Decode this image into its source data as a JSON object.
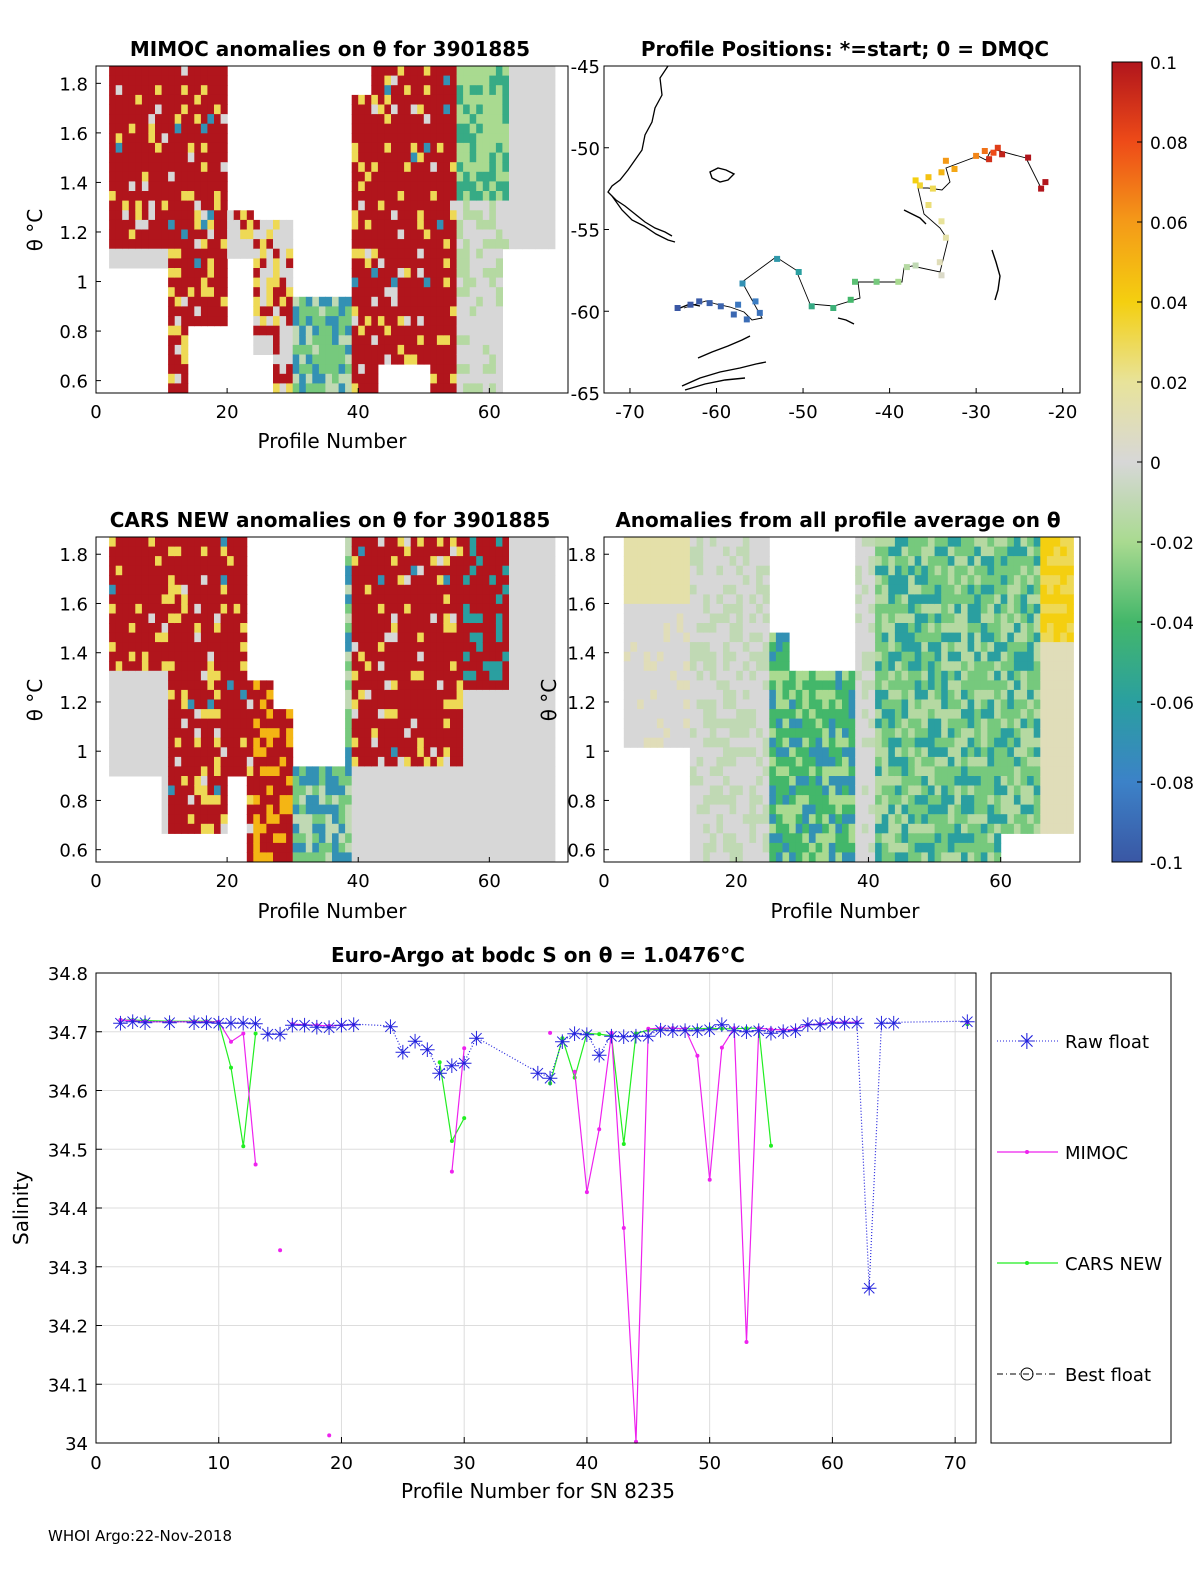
{
  "footer": "WHOI Argo:22-Nov-2018",
  "colors": {
    "raw_float": "#2222dd",
    "mimoc": "#ee22ee",
    "cars": "#22ee22",
    "grid": "#dddddd",
    "contour": "#000000"
  },
  "chart_data": [
    {
      "id": "mimoc",
      "type": "heatmap",
      "title": "MIMOC anomalies on θ  for 3901885",
      "xlabel": "Profile Number",
      "ylabel": "θ °C",
      "xlim": [
        0,
        72
      ],
      "ylim": [
        0.55,
        1.87
      ],
      "xticks": [
        "0",
        "20",
        "40",
        "60"
      ],
      "yticks": [
        "0.6",
        "0.8",
        "1",
        "1.2",
        "1.4",
        "1.6",
        "1.8"
      ]
    },
    {
      "id": "positions",
      "type": "scatter",
      "title": "Profile Positions: *=start; 0 = DMQC",
      "xlim": [
        -73,
        -18
      ],
      "ylim": [
        -65,
        -45
      ],
      "xticks": [
        "-70",
        "-60",
        "-50",
        "-40",
        "-30",
        "-20"
      ],
      "yticks": [
        "-45",
        "-50",
        "-55",
        "-60",
        "-65"
      ],
      "points": [
        {
          "lon": -64.5,
          "lat": -59.8,
          "c": -0.1
        },
        {
          "lon": -63.0,
          "lat": -59.6,
          "c": -0.1
        },
        {
          "lon": -62.0,
          "lat": -59.4,
          "c": -0.098
        },
        {
          "lon": -60.8,
          "lat": -59.5,
          "c": -0.096
        },
        {
          "lon": -59.5,
          "lat": -59.7,
          "c": -0.094
        },
        {
          "lon": -58.0,
          "lat": -60.2,
          "c": -0.092
        },
        {
          "lon": -56.5,
          "lat": -60.5,
          "c": -0.09
        },
        {
          "lon": -55.0,
          "lat": -60.1,
          "c": -0.088
        },
        {
          "lon": -57.5,
          "lat": -59.6,
          "c": -0.085
        },
        {
          "lon": -55.5,
          "lat": -59.4,
          "c": -0.082
        },
        {
          "lon": -57.0,
          "lat": -58.3,
          "c": -0.07
        },
        {
          "lon": -53.0,
          "lat": -56.8,
          "c": -0.065
        },
        {
          "lon": -50.5,
          "lat": -57.6,
          "c": -0.06
        },
        {
          "lon": -49.0,
          "lat": -59.7,
          "c": -0.05
        },
        {
          "lon": -46.5,
          "lat": -59.8,
          "c": -0.045
        },
        {
          "lon": -44.5,
          "lat": -59.3,
          "c": -0.04
        },
        {
          "lon": -44.0,
          "lat": -58.2,
          "c": -0.035
        },
        {
          "lon": -41.5,
          "lat": -58.2,
          "c": -0.03
        },
        {
          "lon": -39.0,
          "lat": -58.2,
          "c": -0.02
        },
        {
          "lon": -38.0,
          "lat": -57.3,
          "c": -0.015
        },
        {
          "lon": -37.0,
          "lat": -57.2,
          "c": -0.01
        },
        {
          "lon": -34.0,
          "lat": -57.8,
          "c": 0.005
        },
        {
          "lon": -34.2,
          "lat": -57.0,
          "c": 0.01
        },
        {
          "lon": -33.5,
          "lat": -55.5,
          "c": 0.015
        },
        {
          "lon": -34.0,
          "lat": -54.5,
          "c": 0.02
        },
        {
          "lon": -35.5,
          "lat": -53.5,
          "c": 0.025
        },
        {
          "lon": -35.0,
          "lat": -52.5,
          "c": 0.03
        },
        {
          "lon": -36.5,
          "lat": -52.3,
          "c": 0.035
        },
        {
          "lon": -37.0,
          "lat": -52.0,
          "c": 0.04
        },
        {
          "lon": -35.5,
          "lat": -51.8,
          "c": 0.045
        },
        {
          "lon": -34.0,
          "lat": -51.5,
          "c": 0.05
        },
        {
          "lon": -32.5,
          "lat": -51.3,
          "c": 0.055
        },
        {
          "lon": -33.5,
          "lat": -50.8,
          "c": 0.06
        },
        {
          "lon": -30.0,
          "lat": -50.5,
          "c": 0.065
        },
        {
          "lon": -29.0,
          "lat": -50.2,
          "c": 0.07
        },
        {
          "lon": -28.0,
          "lat": -50.3,
          "c": 0.08
        },
        {
          "lon": -27.5,
          "lat": -50.0,
          "c": 0.085
        },
        {
          "lon": -28.5,
          "lat": -50.7,
          "c": 0.09
        },
        {
          "lon": -27.0,
          "lat": -50.4,
          "c": 0.095
        },
        {
          "lon": -24.0,
          "lat": -50.6,
          "c": 0.1
        },
        {
          "lon": -22.0,
          "lat": -52.1,
          "c": 0.1
        },
        {
          "lon": -22.5,
          "lat": -52.5,
          "c": 0.1
        }
      ]
    },
    {
      "id": "cars",
      "type": "heatmap",
      "title": "CARS NEW anomalies on θ for 3901885",
      "xlabel": "Profile Number",
      "ylabel": "θ °C",
      "xlim": [
        0,
        72
      ],
      "ylim": [
        0.55,
        1.87
      ],
      "xticks": [
        "0",
        "20",
        "40",
        "60"
      ],
      "yticks": [
        "0.6",
        "0.8",
        "1",
        "1.2",
        "1.4",
        "1.6",
        "1.8"
      ]
    },
    {
      "id": "allavg",
      "type": "heatmap",
      "title": "Anomalies from all profile average on θ",
      "xlabel": "Profile Number",
      "ylabel": "θ °C",
      "xlim": [
        0,
        72
      ],
      "ylim": [
        0.55,
        1.87
      ],
      "xticks": [
        "0",
        "20",
        "40",
        "60"
      ],
      "yticks": [
        "0.6",
        "0.8",
        "1",
        "1.2",
        "1.4",
        "1.6",
        "1.8"
      ]
    },
    {
      "id": "colorbar",
      "type": "colorbar",
      "range": [
        -0.1,
        0.1
      ],
      "ticks": [
        "0.1",
        "0.08",
        "0.06",
        "0.04",
        "0.02",
        "0",
        "-0.02",
        "-0.04",
        "-0.06",
        "-0.08",
        "-0.1"
      ]
    },
    {
      "id": "salinity",
      "type": "line",
      "title": "Euro-Argo at bodc S on θ = 1.0476°C",
      "xlabel": "Profile Number for SN 8235",
      "ylabel": "Salinity",
      "xlim": [
        0,
        71.7
      ],
      "ylim": [
        34.0,
        34.8
      ],
      "xticks": [
        "0",
        "10",
        "20",
        "30",
        "40",
        "50",
        "60",
        "70"
      ],
      "yticks": [
        "34",
        "34.1",
        "34.2",
        "34.3",
        "34.4",
        "34.5",
        "34.6",
        "34.7",
        "34.8"
      ],
      "legend": [
        "Raw float",
        "MIMOC",
        "CARS NEW",
        "Best float"
      ],
      "series": [
        {
          "name": "Raw float",
          "x": [
            2,
            3,
            4,
            6,
            8,
            9,
            10,
            11,
            12,
            13,
            14,
            15,
            16,
            17,
            18,
            19,
            20,
            21,
            24,
            25,
            26,
            27,
            28,
            29,
            30,
            31,
            36,
            37,
            38,
            39,
            40,
            41,
            42,
            43,
            44,
            45,
            46,
            47,
            48,
            49,
            50,
            51,
            52,
            53,
            54,
            55,
            56,
            57,
            58,
            59,
            60,
            61,
            62,
            63,
            64,
            65,
            71
          ],
          "y": [
            34.716,
            34.718,
            34.717,
            34.717,
            34.717,
            34.717,
            34.716,
            34.716,
            34.716,
            34.715,
            34.697,
            34.697,
            34.712,
            34.712,
            34.709,
            34.708,
            34.712,
            34.713,
            34.71,
            34.666,
            34.685,
            34.671,
            34.631,
            34.643,
            34.648,
            34.69,
            34.631,
            34.622,
            34.684,
            34.698,
            34.696,
            34.661,
            34.694,
            34.693,
            34.694,
            34.694,
            34.704,
            34.703,
            34.703,
            34.703,
            34.705,
            34.713,
            34.703,
            34.701,
            34.703,
            34.699,
            34.701,
            34.703,
            34.713,
            34.713,
            34.716,
            34.716,
            34.716,
            34.265,
            34.716,
            34.716,
            34.718
          ]
        },
        {
          "name": "MIMOC",
          "x": [
            2,
            3,
            4,
            6,
            8,
            9,
            10,
            11,
            12,
            13,
            null,
            15,
            null,
            16,
            17,
            18,
            19,
            20,
            21,
            null,
            19,
            null,
            29,
            30,
            null,
            37,
            null,
            39,
            40,
            41,
            42,
            43,
            44,
            45,
            46,
            47,
            48,
            49,
            50,
            51,
            52,
            53,
            54,
            55,
            56,
            57,
            58,
            59,
            60,
            61,
            62,
            null,
            71
          ],
          "y": [
            34.72,
            34.719,
            34.717,
            34.717,
            34.717,
            34.717,
            34.717,
            34.683,
            34.697,
            34.474,
            null,
            34.328,
            null,
            34.713,
            34.712,
            34.711,
            34.71,
            34.711,
            34.712,
            null,
            34.013,
            null,
            34.462,
            34.672,
            null,
            34.698,
            null,
            34.632,
            34.427,
            34.534,
            34.698,
            34.366,
            34.002,
            34.705,
            34.706,
            34.706,
            34.705,
            34.659,
            34.448,
            34.673,
            34.706,
            34.172,
            34.706,
            34.704,
            34.703,
            34.704,
            34.712,
            34.713,
            34.716,
            34.716,
            34.716,
            null,
            34.716
          ]
        },
        {
          "name": "CARS NEW",
          "x": [
            2,
            3,
            4,
            6,
            8,
            9,
            10,
            11,
            12,
            13,
            null,
            28,
            29,
            30,
            null,
            37,
            38,
            39,
            40,
            41,
            42,
            43,
            44,
            45,
            46,
            47,
            48,
            49,
            50,
            51,
            52,
            53,
            54,
            55,
            null,
            71
          ],
          "y": [
            34.72,
            34.72,
            34.719,
            34.718,
            34.718,
            34.718,
            34.717,
            34.639,
            34.505,
            34.697,
            null,
            34.648,
            34.514,
            34.553,
            null,
            34.612,
            34.689,
            34.622,
            34.697,
            34.696,
            34.693,
            34.509,
            34.697,
            34.703,
            34.705,
            34.706,
            34.705,
            34.705,
            34.706,
            34.705,
            34.705,
            34.706,
            34.706,
            34.506,
            null,
            34.713
          ]
        }
      ]
    }
  ]
}
